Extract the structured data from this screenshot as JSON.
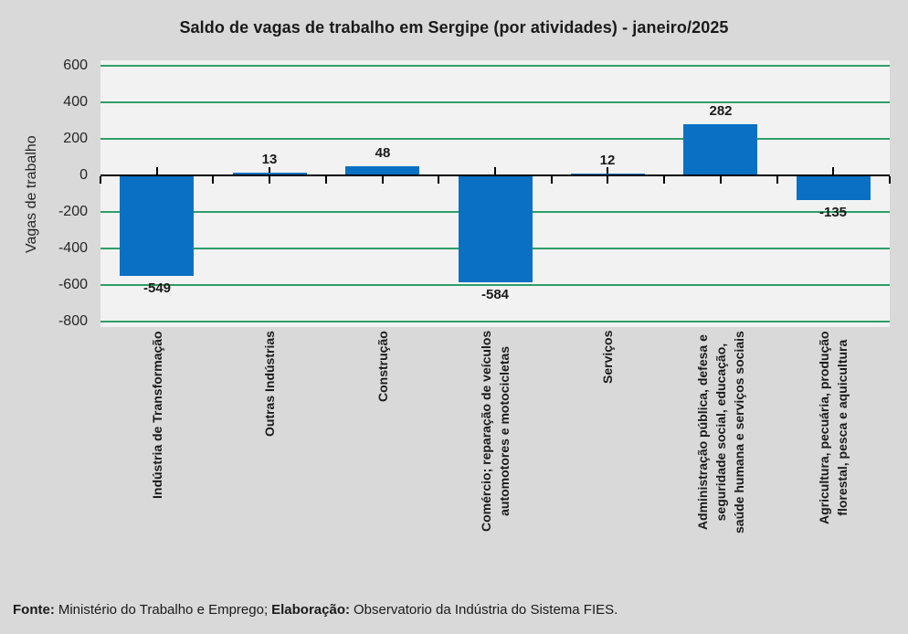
{
  "chart_data": {
    "type": "bar",
    "title": "Saldo de vagas de trabalho em Sergipe (por atividades) - janeiro/2025",
    "xlabel": "",
    "ylabel": "Vagas de trabalho",
    "categories": [
      [
        "Indústria de Transformação"
      ],
      [
        "Outras Indústrias"
      ],
      [
        "Construção"
      ],
      [
        "Comércio; reparação de veículos",
        "automotores e motocicletas"
      ],
      [
        "Serviços"
      ],
      [
        "Administração pública, defesa e",
        "seguridade social, educação,",
        "saúde humana e serviços sociais"
      ],
      [
        "Agricultura, pecuária, produção",
        "florestal, pesca e aquicultura"
      ]
    ],
    "values": [
      -549,
      13,
      48,
      -584,
      12,
      282,
      -135
    ],
    "value_labels": [
      "-549",
      "13",
      "48",
      "-584",
      "12",
      "282",
      "-135"
    ],
    "ylim": [
      -800,
      600
    ],
    "yticks": [
      600,
      400,
      200,
      0,
      -200,
      -400,
      -600,
      -800
    ],
    "grid": true,
    "legend": "none",
    "bar_color": "#0a70c4",
    "gridline_color": "#2f9e69",
    "plot_background": "#f2f2f2",
    "outer_background": "#d9d9d9"
  },
  "footer": {
    "fonte_label": "Fonte:",
    "fonte_text": "Ministério do Trabalho e Emprego;",
    "elaboracao_label": "Elaboração:",
    "elaboracao_text": "Observatorio da Indústria do Sistema FIES."
  }
}
